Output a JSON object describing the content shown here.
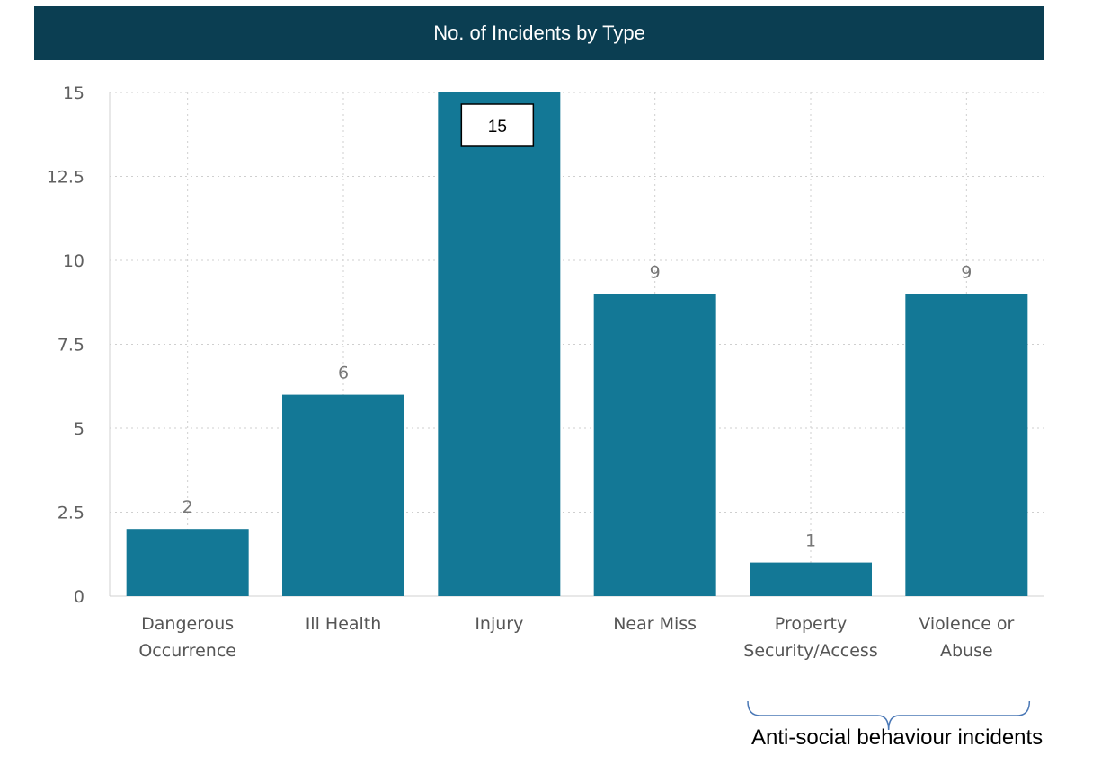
{
  "chart_data": {
    "type": "bar",
    "title": "No. of Incidents by Type",
    "categories": [
      [
        "Dangerous",
        "Occurrence"
      ],
      [
        "Ill Health"
      ],
      [
        "Injury"
      ],
      [
        "Near Miss"
      ],
      [
        "Property",
        "Security/Access"
      ],
      [
        "Violence or",
        "Abuse"
      ]
    ],
    "values": [
      2,
      6,
      15,
      9,
      1,
      9
    ],
    "data_labels": [
      "2",
      "6",
      "15",
      "9",
      "1",
      "9"
    ],
    "highlighted_label_index": 2,
    "ylim": [
      0,
      15
    ],
    "yticks": [
      0,
      2.5,
      5,
      7.5,
      10,
      12.5,
      15
    ],
    "ytick_labels": [
      "0",
      "2.5",
      "5",
      "7.5",
      "10",
      "12.5",
      "15"
    ],
    "xlabel": "",
    "ylabel": "",
    "grid": true,
    "colors": {
      "bar": "#137896",
      "title_bg": "#0b3e52",
      "title_text": "#ffffff",
      "annotation_brace": "#4a78b6"
    },
    "annotation": {
      "text": "Anti-social behaviour incidents",
      "spans_categories": [
        4,
        5
      ]
    }
  }
}
